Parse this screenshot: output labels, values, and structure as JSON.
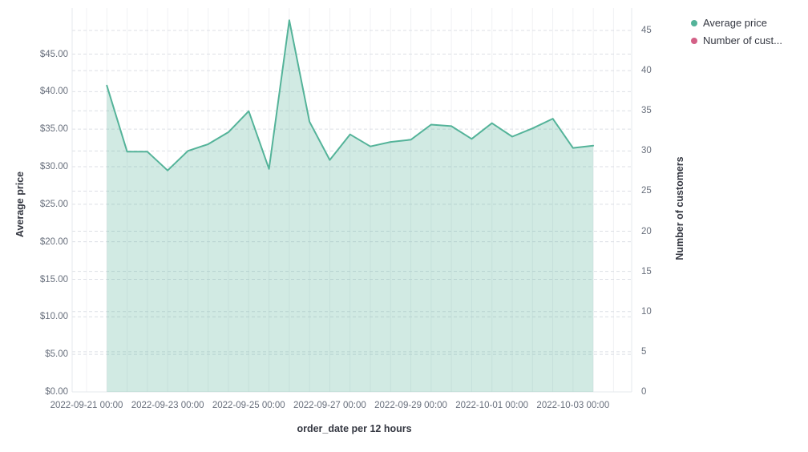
{
  "chart_data": {
    "type": "area",
    "title": "",
    "xlabel": "order_date per 12 hours",
    "left_axis": {
      "title": "Average price",
      "tick_values": [
        0,
        5,
        10,
        15,
        20,
        25,
        30,
        35,
        40,
        45
      ],
      "tick_labels": [
        "$0.00",
        "$5.00",
        "$10.00",
        "$15.00",
        "$20.00",
        "$25.00",
        "$30.00",
        "$35.00",
        "$40.00",
        "$45.00"
      ],
      "range": [
        0,
        51
      ]
    },
    "right_axis": {
      "title": "Number of customers",
      "tick_values": [
        0,
        5,
        10,
        15,
        20,
        25,
        30,
        35,
        40,
        45
      ],
      "tick_labels": [
        "0",
        "5",
        "10",
        "15",
        "20",
        "25",
        "30",
        "35",
        "40",
        "45"
      ],
      "range": [
        0,
        47.8
      ]
    },
    "x_axis": {
      "tick_labels": [
        "2022-09-21 00:00",
        "2022-09-23 00:00",
        "2022-09-25 00:00",
        "2022-09-27 00:00",
        "2022-09-29 00:00",
        "2022-10-01 00:00",
        "2022-10-03 00:00"
      ],
      "interval": "12 hours"
    },
    "grid": {
      "horizontal": "dashed",
      "vertical": "solid"
    },
    "legend_position": "right",
    "series": [
      {
        "name": "Average price",
        "axis": "left",
        "color": "#54B399",
        "fill_opacity": 0.27,
        "visible": true,
        "x": [
          "2022-09-21 12:00",
          "2022-09-22 00:00",
          "2022-09-22 12:00",
          "2022-09-23 00:00",
          "2022-09-23 12:00",
          "2022-09-24 00:00",
          "2022-09-24 12:00",
          "2022-09-25 00:00",
          "2022-09-25 12:00",
          "2022-09-26 00:00",
          "2022-09-26 12:00",
          "2022-09-27 00:00",
          "2022-09-27 12:00",
          "2022-09-28 00:00",
          "2022-09-28 12:00",
          "2022-09-29 00:00",
          "2022-09-29 12:00",
          "2022-09-30 00:00",
          "2022-09-30 12:00",
          "2022-10-01 00:00",
          "2022-10-01 12:00",
          "2022-10-02 00:00",
          "2022-10-02 12:00",
          "2022-10-03 00:00",
          "2022-10-03 12:00"
        ],
        "values": [
          40.8,
          32.0,
          32.0,
          29.5,
          32.1,
          33.0,
          34.6,
          37.4,
          29.7,
          49.5,
          36.0,
          30.9,
          34.3,
          32.7,
          33.3,
          33.6,
          35.6,
          35.4,
          33.7,
          35.8,
          34.0,
          35.1,
          36.4,
          32.5,
          32.8
        ]
      },
      {
        "name": "Number of customers",
        "axis": "right",
        "color": "#D36086",
        "visible": false,
        "values": []
      }
    ]
  },
  "legend": {
    "items": [
      {
        "label": "Average price",
        "color": "#54B399"
      },
      {
        "label": "Number of cust...",
        "color": "#D36086"
      }
    ]
  },
  "colors": {
    "background": "#ffffff",
    "area_line": "#54B399",
    "area_fill": "rgba(84,179,153,0.27)",
    "legend_pink": "#D36086",
    "grid_dashed": "#dcdfe5",
    "grid_vertical": "#f0f1f4",
    "axis_border": "#e6e9ed",
    "tick_text": "#69707d",
    "title_text": "#343741"
  }
}
